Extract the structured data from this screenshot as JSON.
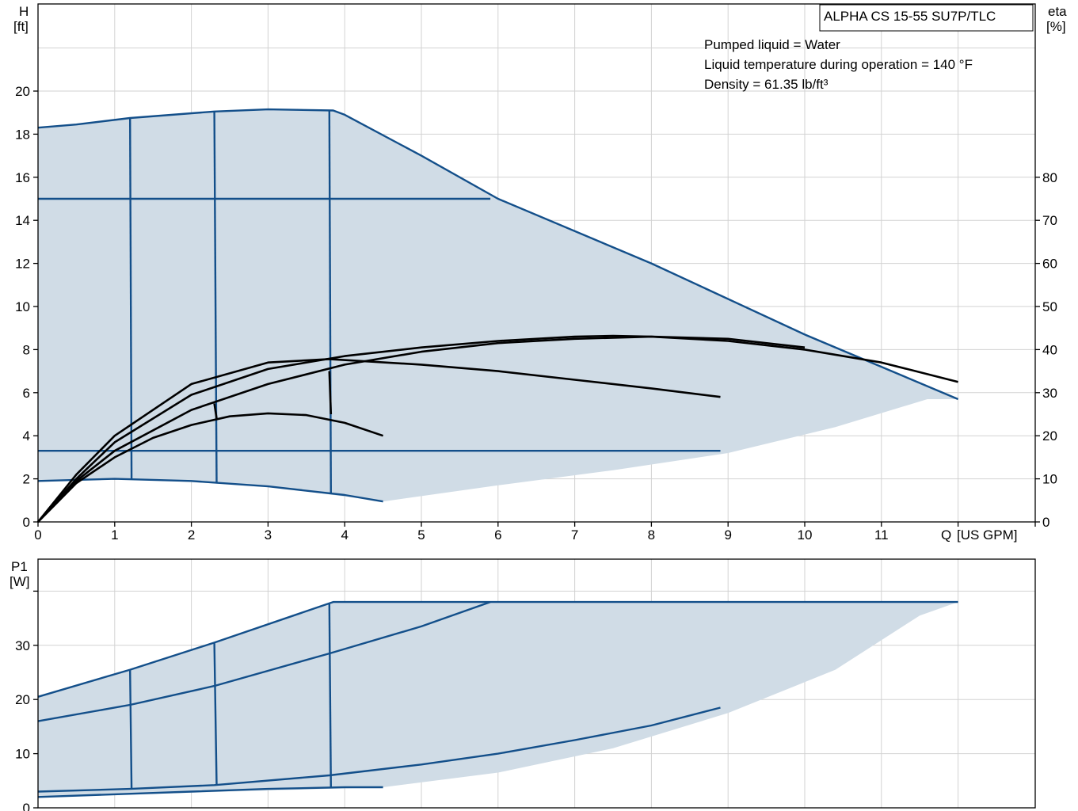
{
  "chart_data": [
    {
      "type": "line",
      "title": "ALPHA CS 15-55 SU7P/TLC",
      "annotations": [
        "Pumped liquid = Water",
        "Liquid temperature during operation = 140 °F",
        "Density = 61.35 lb/ft³"
      ],
      "xlabel_prefix": "Q",
      "xlabel_unit": "[US GPM]",
      "ylabel": "H",
      "ylabel_unit": "[ft]",
      "y2label": "eta",
      "y2label_unit": "[%]",
      "xlim": [
        0,
        13
      ],
      "ylim": [
        0,
        22
      ],
      "y2lim": [
        0,
        100
      ],
      "xticks": [
        0,
        1,
        2,
        3,
        4,
        5,
        6,
        7,
        8,
        9,
        10,
        11
      ],
      "yticks": [
        0,
        2,
        4,
        6,
        8,
        10,
        12,
        14,
        16,
        18,
        20
      ],
      "y2ticks": [
        0,
        10,
        20,
        30,
        40,
        50,
        60,
        70,
        80
      ],
      "grid": true,
      "envelope": [
        [
          0,
          18.3
        ],
        [
          0.5,
          18.45
        ],
        [
          1.2,
          18.75
        ],
        [
          2.3,
          19.05
        ],
        [
          3.0,
          19.15
        ],
        [
          3.85,
          19.1
        ],
        [
          4.0,
          18.9
        ],
        [
          5.0,
          17.0
        ],
        [
          6.0,
          15.0
        ],
        [
          8.0,
          12.0
        ],
        [
          10.0,
          8.7
        ],
        [
          12.0,
          5.7
        ],
        [
          11.6,
          5.7
        ],
        [
          10.4,
          4.4
        ],
        [
          9.0,
          3.2
        ],
        [
          7.5,
          2.4
        ],
        [
          6.0,
          1.7
        ],
        [
          4.5,
          0.95
        ],
        [
          3.0,
          1.65
        ],
        [
          1.2,
          2.0
        ],
        [
          0,
          1.9
        ]
      ],
      "series": [
        {
          "group": "head",
          "values": [
            [
              0,
              18.3
            ],
            [
              0.5,
              18.45
            ],
            [
              1.2,
              18.75
            ],
            [
              2.3,
              19.05
            ],
            [
              3.0,
              19.15
            ],
            [
              3.85,
              19.1
            ],
            [
              4.0,
              18.9
            ],
            [
              5.0,
              17.0
            ],
            [
              6.0,
              15.0
            ],
            [
              8.0,
              12.0
            ],
            [
              10.0,
              8.7
            ],
            [
              12.0,
              5.7
            ]
          ]
        },
        {
          "group": "head",
          "values": [
            [
              0,
              15.0
            ],
            [
              5.9,
              15.0
            ]
          ]
        },
        {
          "group": "head",
          "values": [
            [
              0,
              3.3
            ],
            [
              8.9,
              3.3
            ]
          ]
        },
        {
          "group": "head",
          "values": [
            [
              0,
              1.9
            ],
            [
              1.0,
              2.0
            ],
            [
              2.0,
              1.9
            ],
            [
              3.0,
              1.65
            ],
            [
              4.0,
              1.25
            ],
            [
              4.5,
              0.95
            ]
          ]
        },
        {
          "group": "head",
          "values": [
            [
              1.2,
              18.75
            ],
            [
              1.22,
              2.0
            ]
          ]
        },
        {
          "group": "head",
          "values": [
            [
              2.3,
              19.05
            ],
            [
              2.33,
              1.8
            ]
          ]
        },
        {
          "group": "head",
          "values": [
            [
              3.8,
              19.1
            ],
            [
              3.82,
              1.3
            ]
          ]
        },
        {
          "group": "eta",
          "values": [
            [
              0,
              0
            ],
            [
              0.5,
              10
            ],
            [
              1.0,
              18.5
            ],
            [
              2.0,
              29.5
            ],
            [
              3.0,
              35.5
            ],
            [
              4.0,
              38.5
            ],
            [
              5.0,
              40.5
            ],
            [
              6.0,
              42
            ],
            [
              7.0,
              43
            ],
            [
              7.5,
              43.2
            ],
            [
              8.0,
              43
            ],
            [
              9.0,
              42
            ],
            [
              10.0,
              40
            ],
            [
              11.0,
              37
            ],
            [
              12.0,
              32.5
            ]
          ]
        },
        {
          "group": "eta",
          "values": [
            [
              0,
              0
            ],
            [
              0.5,
              11
            ],
            [
              1.0,
              20
            ],
            [
              2.0,
              32
            ],
            [
              3.0,
              37
            ],
            [
              3.8,
              37.8
            ],
            [
              5.0,
              36.5
            ],
            [
              6.0,
              35
            ],
            [
              7.0,
              33
            ],
            [
              8.0,
              31
            ],
            [
              8.9,
              29
            ]
          ]
        },
        {
          "group": "eta",
          "values": [
            [
              0,
              0
            ],
            [
              0.5,
              9
            ],
            [
              1.0,
              15
            ],
            [
              1.5,
              19.5
            ],
            [
              2.0,
              22.5
            ],
            [
              2.5,
              24.5
            ],
            [
              3.0,
              25.2
            ],
            [
              3.5,
              24.8
            ],
            [
              4.0,
              23
            ],
            [
              4.5,
              20
            ]
          ]
        },
        {
          "group": "eta",
          "values": [
            [
              0,
              0
            ],
            [
              0.5,
              9.5
            ],
            [
              1.0,
              16.5
            ],
            [
              2.0,
              26
            ],
            [
              3.0,
              32
            ],
            [
              4.0,
              36.5
            ],
            [
              5.0,
              39.5
            ],
            [
              6.0,
              41.5
            ],
            [
              7.0,
              42.5
            ],
            [
              8.0,
              43
            ],
            [
              9.0,
              42.5
            ],
            [
              10.0,
              40.5
            ]
          ]
        },
        {
          "group": "eta",
          "values": [
            [
              2.3,
              27.5
            ],
            [
              2.33,
              24
            ]
          ]
        },
        {
          "group": "eta",
          "values": [
            [
              3.8,
              35
            ],
            [
              3.82,
              25
            ]
          ]
        }
      ]
    },
    {
      "type": "line",
      "ylabel": "P1",
      "ylabel_unit": "[W]",
      "xlim": [
        0,
        13
      ],
      "ylim": [
        0,
        40
      ],
      "yticks": [
        0,
        10,
        20,
        30
      ],
      "grid": true,
      "envelope": [
        [
          0,
          20.5
        ],
        [
          1.2,
          25.5
        ],
        [
          2.3,
          30.5
        ],
        [
          3.85,
          38
        ],
        [
          12.0,
          38
        ],
        [
          11.5,
          35.5
        ],
        [
          10.4,
          25.5
        ],
        [
          9.0,
          17.5
        ],
        [
          7.5,
          11
        ],
        [
          6.0,
          6.5
        ],
        [
          4.5,
          3.8
        ],
        [
          0,
          2.0
        ]
      ],
      "series": [
        {
          "values": [
            [
              0,
              20.5
            ],
            [
              1.2,
              25.5
            ],
            [
              2.3,
              30.5
            ],
            [
              3.85,
              38
            ],
            [
              5.9,
              38
            ],
            [
              12.0,
              38
            ]
          ]
        },
        {
          "values": [
            [
              0,
              16
            ],
            [
              1.2,
              19
            ],
            [
              2.3,
              22.5
            ],
            [
              3.8,
              28.5
            ],
            [
              5.0,
              33.5
            ],
            [
              5.9,
              38
            ]
          ]
        },
        {
          "values": [
            [
              0,
              3
            ],
            [
              1.2,
              3.5
            ],
            [
              2.3,
              4.2
            ],
            [
              3.8,
              6.0
            ],
            [
              5.0,
              8.0
            ],
            [
              6.0,
              10.0
            ],
            [
              7.0,
              12.5
            ],
            [
              8.0,
              15.2
            ],
            [
              8.9,
              18.5
            ]
          ]
        },
        {
          "values": [
            [
              0,
              2.0
            ],
            [
              1.0,
              2.5
            ],
            [
              2.0,
              3.0
            ],
            [
              3.0,
              3.5
            ],
            [
              4.0,
              3.8
            ],
            [
              4.5,
              3.8
            ]
          ]
        },
        {
          "values": [
            [
              1.2,
              25.5
            ],
            [
              1.22,
              3.5
            ]
          ]
        },
        {
          "values": [
            [
              2.3,
              30.5
            ],
            [
              2.33,
              4.2
            ]
          ]
        },
        {
          "values": [
            [
              3.8,
              37.6
            ],
            [
              3.82,
              3.8
            ]
          ]
        }
      ]
    }
  ]
}
